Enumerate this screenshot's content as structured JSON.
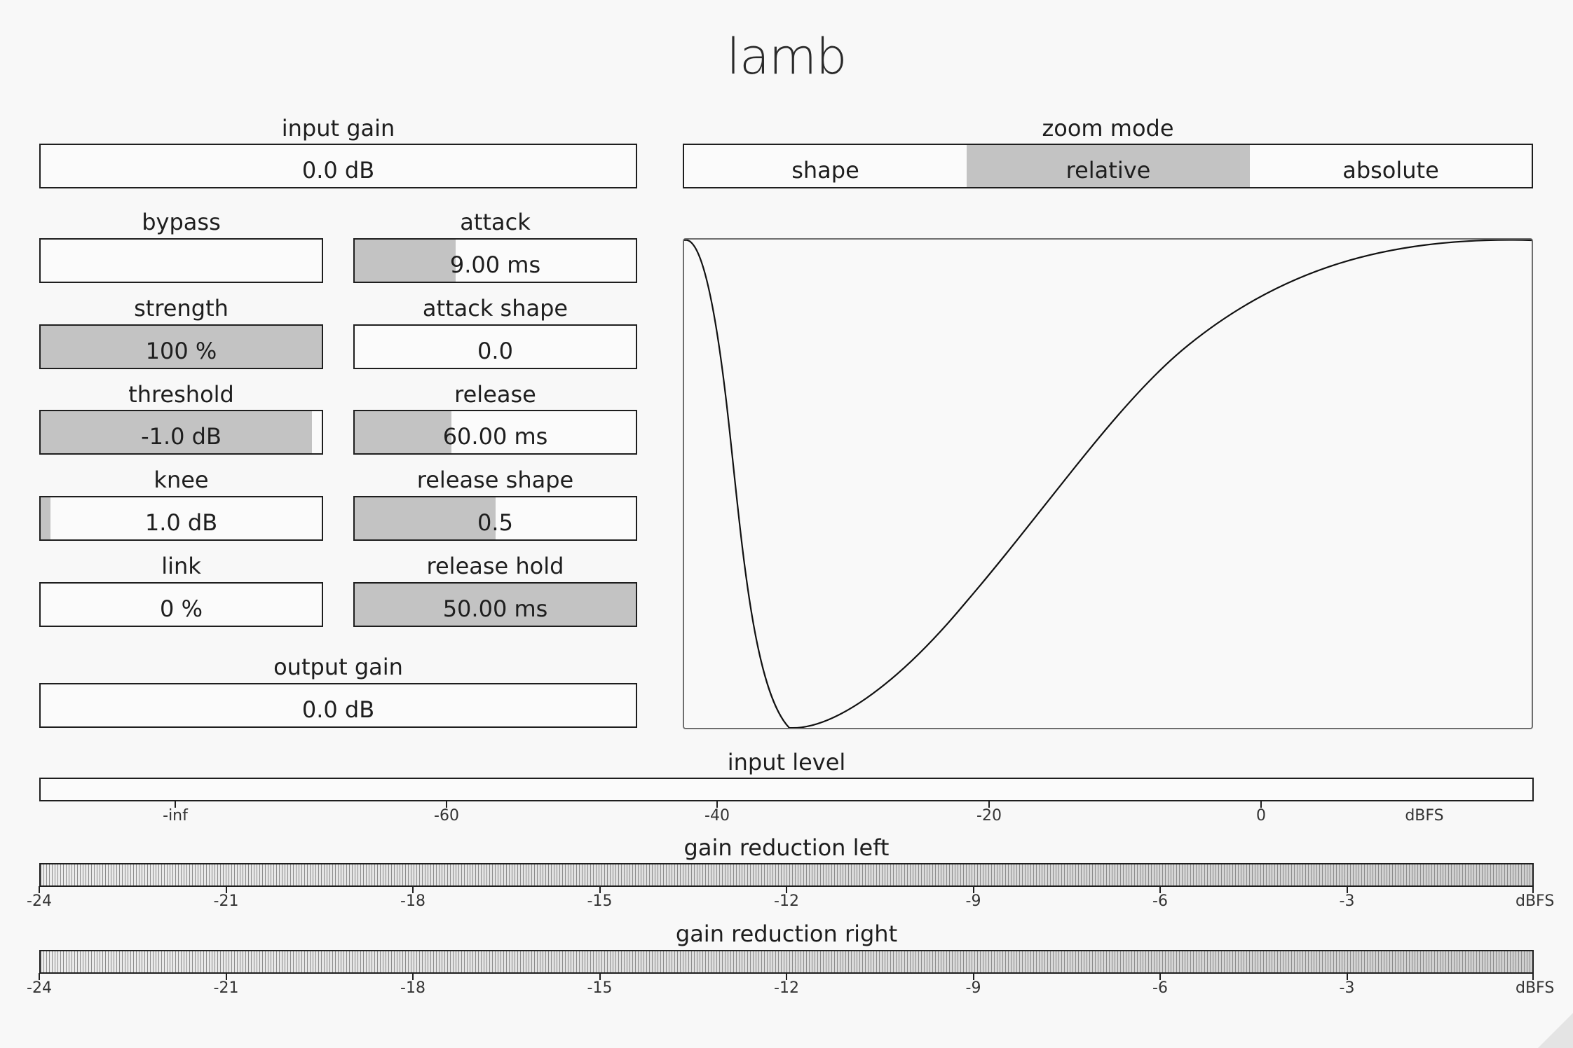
{
  "title": "lamb",
  "input_gain": {
    "label": "input gain",
    "value": "0.0 dB"
  },
  "zoom_mode": {
    "label": "zoom mode",
    "options": [
      "shape",
      "relative",
      "absolute"
    ],
    "selected": "relative"
  },
  "controls": {
    "bypass": {
      "label": "bypass",
      "value": "",
      "fill": 0
    },
    "attack": {
      "label": "attack",
      "value": "9.00 ms",
      "fill": 0.36
    },
    "strength": {
      "label": "strength",
      "value": "100 %",
      "fill": 1.0
    },
    "attack_shape": {
      "label": "attack shape",
      "value": "0.0",
      "fill": 0
    },
    "threshold": {
      "label": "threshold",
      "value": "-1.0 dB",
      "fill": 0.965
    },
    "release": {
      "label": "release",
      "value": "60.00 ms",
      "fill": 0.345
    },
    "knee": {
      "label": "knee",
      "value": "1.0 dB",
      "fill": 0.035
    },
    "release_shape": {
      "label": "release shape",
      "value": "0.5",
      "fill": 0.5
    },
    "link": {
      "label": "link",
      "value": "0 %",
      "fill": 0
    },
    "release_hold": {
      "label": "release hold",
      "value": "50.00 ms",
      "fill": 1.0
    }
  },
  "output_gain": {
    "label": "output gain",
    "value": "0.0 dB"
  },
  "input_level": {
    "label": "input level",
    "ticks": [
      "-inf",
      "-60",
      "-40",
      "-20",
      "0"
    ],
    "unit": "dBFS"
  },
  "gain_reduction_left": {
    "label": "gain reduction left",
    "ticks": [
      "-24",
      "-21",
      "-18",
      "-15",
      "-12",
      "-9",
      "-6",
      "-3"
    ],
    "unit": "dBFS"
  },
  "gain_reduction_right": {
    "label": "gain reduction right",
    "ticks": [
      "-24",
      "-21",
      "-18",
      "-15",
      "-12",
      "-9",
      "-6",
      "-3"
    ],
    "unit": "dBFS"
  }
}
